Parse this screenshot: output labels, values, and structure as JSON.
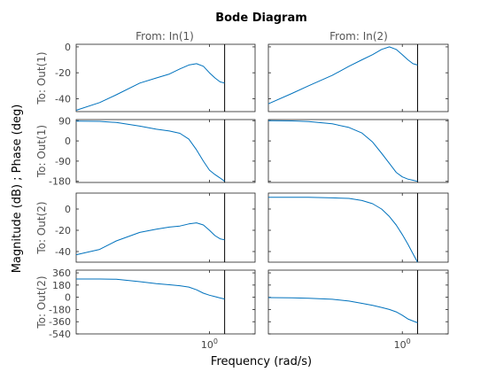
{
  "chart_data": {
    "type": "line",
    "title": "Bode Diagram",
    "xlabel": "Frequency  (rad/s)",
    "ylabel": "Magnitude (dB) ; Phase (deg)",
    "x_scale": "log",
    "xlim": [
      0.1,
      2.2
    ],
    "x_tick_labels": [
      "10",
      "0"
    ],
    "nyquist_frequency": 1.3,
    "line_color": "#0072BD",
    "grid": false,
    "column_titles": [
      "From: In(1)",
      "From: In(2)"
    ],
    "row_titles": [
      "To: Out(1)",
      "To: Out(1)",
      "To: Out(2)",
      "To: Out(2)"
    ],
    "panels": [
      {
        "row": 0,
        "col": 0,
        "kind": "magnitude",
        "ylim": [
          -50,
          2
        ],
        "yticks": [
          "0",
          "-20",
          "-40"
        ],
        "yticks_values": [
          0,
          -20,
          -40
        ],
        "x": [
          0.1,
          0.15,
          0.2,
          0.3,
          0.4,
          0.5,
          0.6,
          0.7,
          0.8,
          0.9,
          1.0,
          1.1,
          1.2,
          1.3
        ],
        "y": [
          -49,
          -43,
          -37,
          -28,
          -24,
          -21,
          -17,
          -14,
          -13,
          -15,
          -20,
          -24,
          -27,
          -28
        ]
      },
      {
        "row": 0,
        "col": 1,
        "kind": "magnitude",
        "ylim": [
          -50,
          2
        ],
        "yticks": [
          "0",
          "-20",
          "-40"
        ],
        "yticks_values": [
          0,
          -20,
          -40
        ],
        "x": [
          0.1,
          0.15,
          0.2,
          0.3,
          0.4,
          0.5,
          0.6,
          0.7,
          0.8,
          0.9,
          1.0,
          1.1,
          1.2,
          1.3
        ],
        "y": [
          -44,
          -36,
          -30,
          -22,
          -15,
          -10,
          -6,
          -2,
          0,
          -2,
          -6,
          -10,
          -13,
          -14
        ]
      },
      {
        "row": 1,
        "col": 0,
        "kind": "phase",
        "ylim": [
          -185,
          95
        ],
        "yticks": [
          "90",
          "0",
          "-90",
          "-180"
        ],
        "yticks_values": [
          90,
          0,
          -90,
          -180
        ],
        "x": [
          0.1,
          0.15,
          0.2,
          0.3,
          0.4,
          0.5,
          0.6,
          0.7,
          0.8,
          0.9,
          1.0,
          1.1,
          1.2,
          1.3
        ],
        "y": [
          88,
          87,
          82,
          66,
          52,
          44,
          34,
          8,
          -40,
          -90,
          -130,
          -150,
          -165,
          -180
        ]
      },
      {
        "row": 1,
        "col": 1,
        "kind": "phase",
        "ylim": [
          -185,
          95
        ],
        "yticks": [
          "90",
          "0",
          "-90",
          "-180"
        ],
        "yticks_values": [
          90,
          0,
          -90,
          -180
        ],
        "x": [
          0.1,
          0.15,
          0.2,
          0.3,
          0.4,
          0.5,
          0.6,
          0.7,
          0.8,
          0.9,
          1.0,
          1.1,
          1.2,
          1.3
        ],
        "y": [
          90,
          89,
          86,
          76,
          60,
          35,
          -5,
          -55,
          -100,
          -140,
          -160,
          -170,
          -175,
          -180
        ]
      },
      {
        "row": 2,
        "col": 0,
        "kind": "magnitude",
        "ylim": [
          -50,
          15
        ],
        "yticks": [
          "0",
          "-20",
          "-40"
        ],
        "yticks_values": [
          0,
          -20,
          -40
        ],
        "x": [
          0.1,
          0.15,
          0.2,
          0.3,
          0.4,
          0.5,
          0.6,
          0.7,
          0.8,
          0.9,
          1.0,
          1.1,
          1.2,
          1.3
        ],
        "y": [
          -43,
          -38,
          -30,
          -22,
          -19,
          -17,
          -16,
          -14,
          -13,
          -15,
          -20,
          -25,
          -28,
          -29
        ]
      },
      {
        "row": 2,
        "col": 1,
        "kind": "magnitude",
        "ylim": [
          -50,
          15
        ],
        "yticks": [
          "0",
          "-20",
          "-40"
        ],
        "yticks_values": [
          0,
          -20,
          -40
        ],
        "x": [
          0.1,
          0.15,
          0.2,
          0.3,
          0.4,
          0.5,
          0.6,
          0.7,
          0.8,
          0.9,
          1.0,
          1.1,
          1.2,
          1.3
        ],
        "y": [
          11,
          11,
          11,
          10.5,
          10,
          8,
          5,
          0,
          -7,
          -15,
          -24,
          -33,
          -42,
          -50
        ]
      },
      {
        "row": 3,
        "col": 0,
        "kind": "phase",
        "ylim": [
          -540,
          400
        ],
        "yticks": [
          "360",
          "180",
          "0",
          "-180",
          "-360",
          "-540"
        ],
        "yticks_values": [
          360,
          180,
          0,
          -180,
          -360,
          -540
        ],
        "x": [
          0.1,
          0.15,
          0.2,
          0.3,
          0.4,
          0.5,
          0.6,
          0.7,
          0.8,
          0.9,
          1.0,
          1.1,
          1.2,
          1.3
        ],
        "y": [
          270,
          270,
          265,
          230,
          200,
          185,
          170,
          150,
          110,
          60,
          30,
          10,
          -10,
          -25
        ]
      },
      {
        "row": 3,
        "col": 1,
        "kind": "phase",
        "ylim": [
          -540,
          400
        ],
        "yticks": [
          "360",
          "180",
          "0",
          "-180",
          "-360",
          "-540"
        ],
        "yticks_values": [
          360,
          180,
          0,
          -180,
          -360,
          -540
        ],
        "x": [
          0.1,
          0.15,
          0.2,
          0.3,
          0.4,
          0.5,
          0.6,
          0.7,
          0.8,
          0.9,
          1.0,
          1.1,
          1.2,
          1.3
        ],
        "y": [
          -5,
          -8,
          -15,
          -30,
          -55,
          -90,
          -120,
          -150,
          -180,
          -215,
          -265,
          -320,
          -350,
          -375
        ]
      }
    ]
  }
}
